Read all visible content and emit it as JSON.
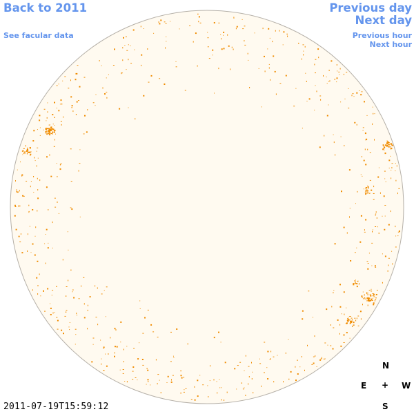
{
  "nav": {
    "back": "Back to 2011",
    "see_facular": "See facular data",
    "prev_day": "Previous day",
    "next_day": "Next day",
    "prev_hour": "Previous hour",
    "next_hour": "Next hour"
  },
  "compass": {
    "n": "N",
    "s": "S",
    "e": "E",
    "w": "W",
    "center": "+"
  },
  "timestamp": "2011-07-19T15:59:12",
  "colors": {
    "link": "#6495ed",
    "disk_fill": "#fffaf0",
    "disk_stroke": "#b5b0a8",
    "facula": "#f08c00"
  }
}
